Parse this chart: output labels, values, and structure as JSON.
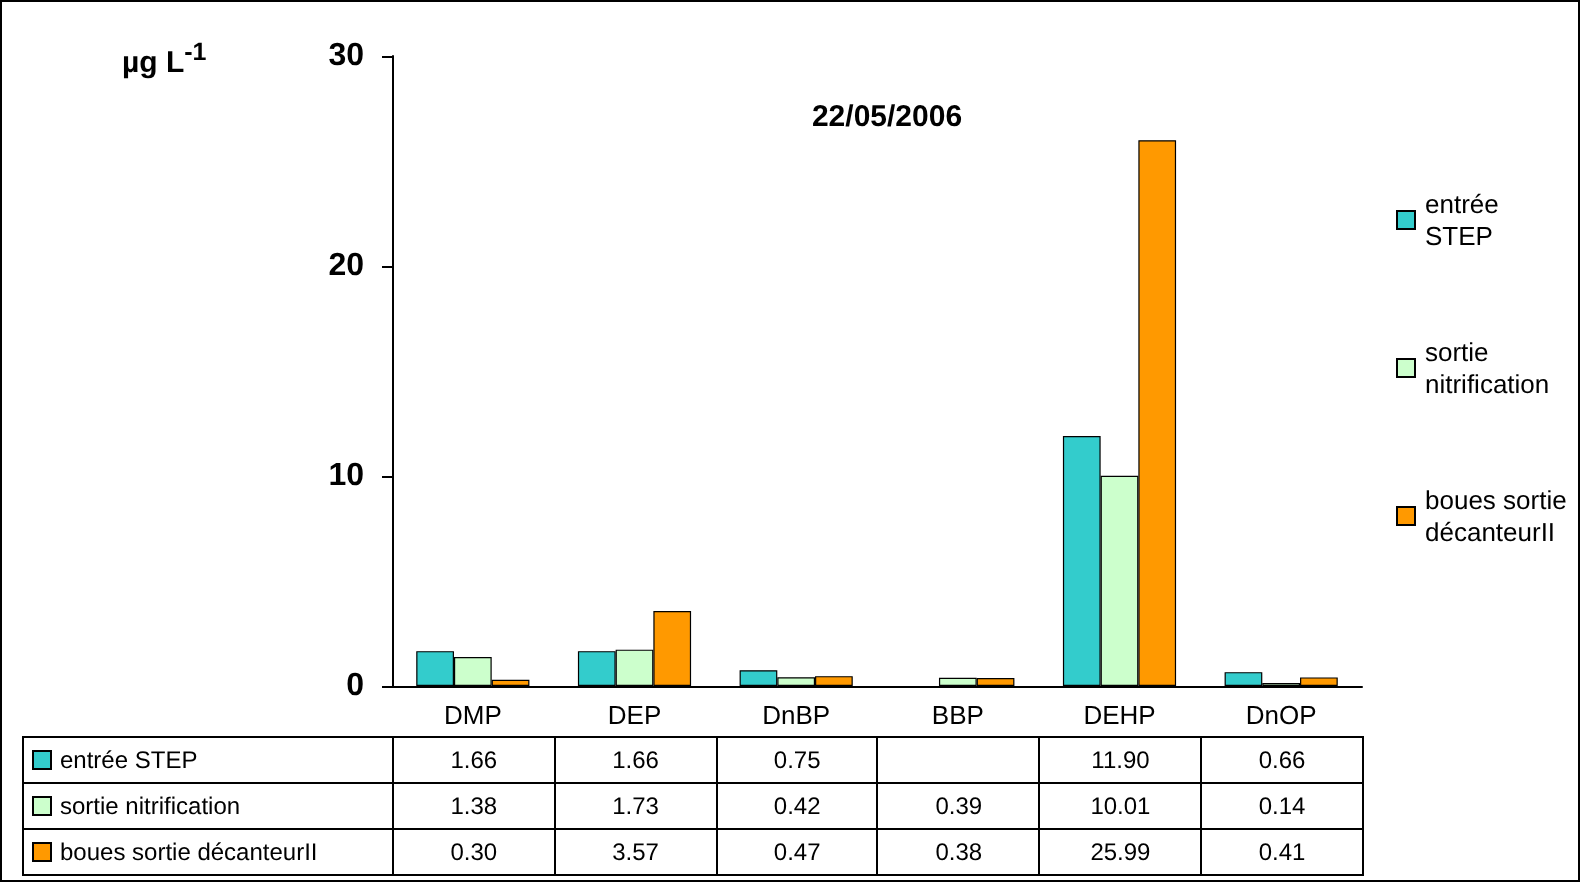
{
  "chart_data": {
    "type": "bar",
    "title": "22/05/2006",
    "ylabel": "µg L$^{-1}$",
    "categories": [
      "DMP",
      "DEP",
      "DnBP",
      "BBP",
      "DEHP",
      "DnOP"
    ],
    "series": [
      {
        "name": "entrée STEP",
        "color": "#33cccc",
        "values": [
          1.66,
          1.66,
          0.75,
          null,
          11.9,
          0.66
        ],
        "value_labels": [
          "1.66",
          "1.66",
          "0.75",
          null,
          "11.90",
          "0.66"
        ]
      },
      {
        "name": "sortie nitrification",
        "color": "#ccffcc",
        "values": [
          1.38,
          1.73,
          0.42,
          0.39,
          10.01,
          0.14
        ],
        "value_labels": [
          "1.38",
          "1.73",
          "0.42",
          "0.39",
          "10.01",
          "0.14"
        ]
      },
      {
        "name": "boues sortie décanteurII",
        "color": "#ff9900",
        "values": [
          0.3,
          3.57,
          0.47,
          0.38,
          25.99,
          0.41
        ],
        "value_labels": [
          "0.30",
          "3.57",
          "0.47",
          "0.38",
          "25.99",
          "0.41"
        ]
      }
    ],
    "ylim": [
      0,
      30
    ],
    "yticks": [
      0,
      10,
      20,
      30
    ],
    "grid": false,
    "legend": "right"
  }
}
